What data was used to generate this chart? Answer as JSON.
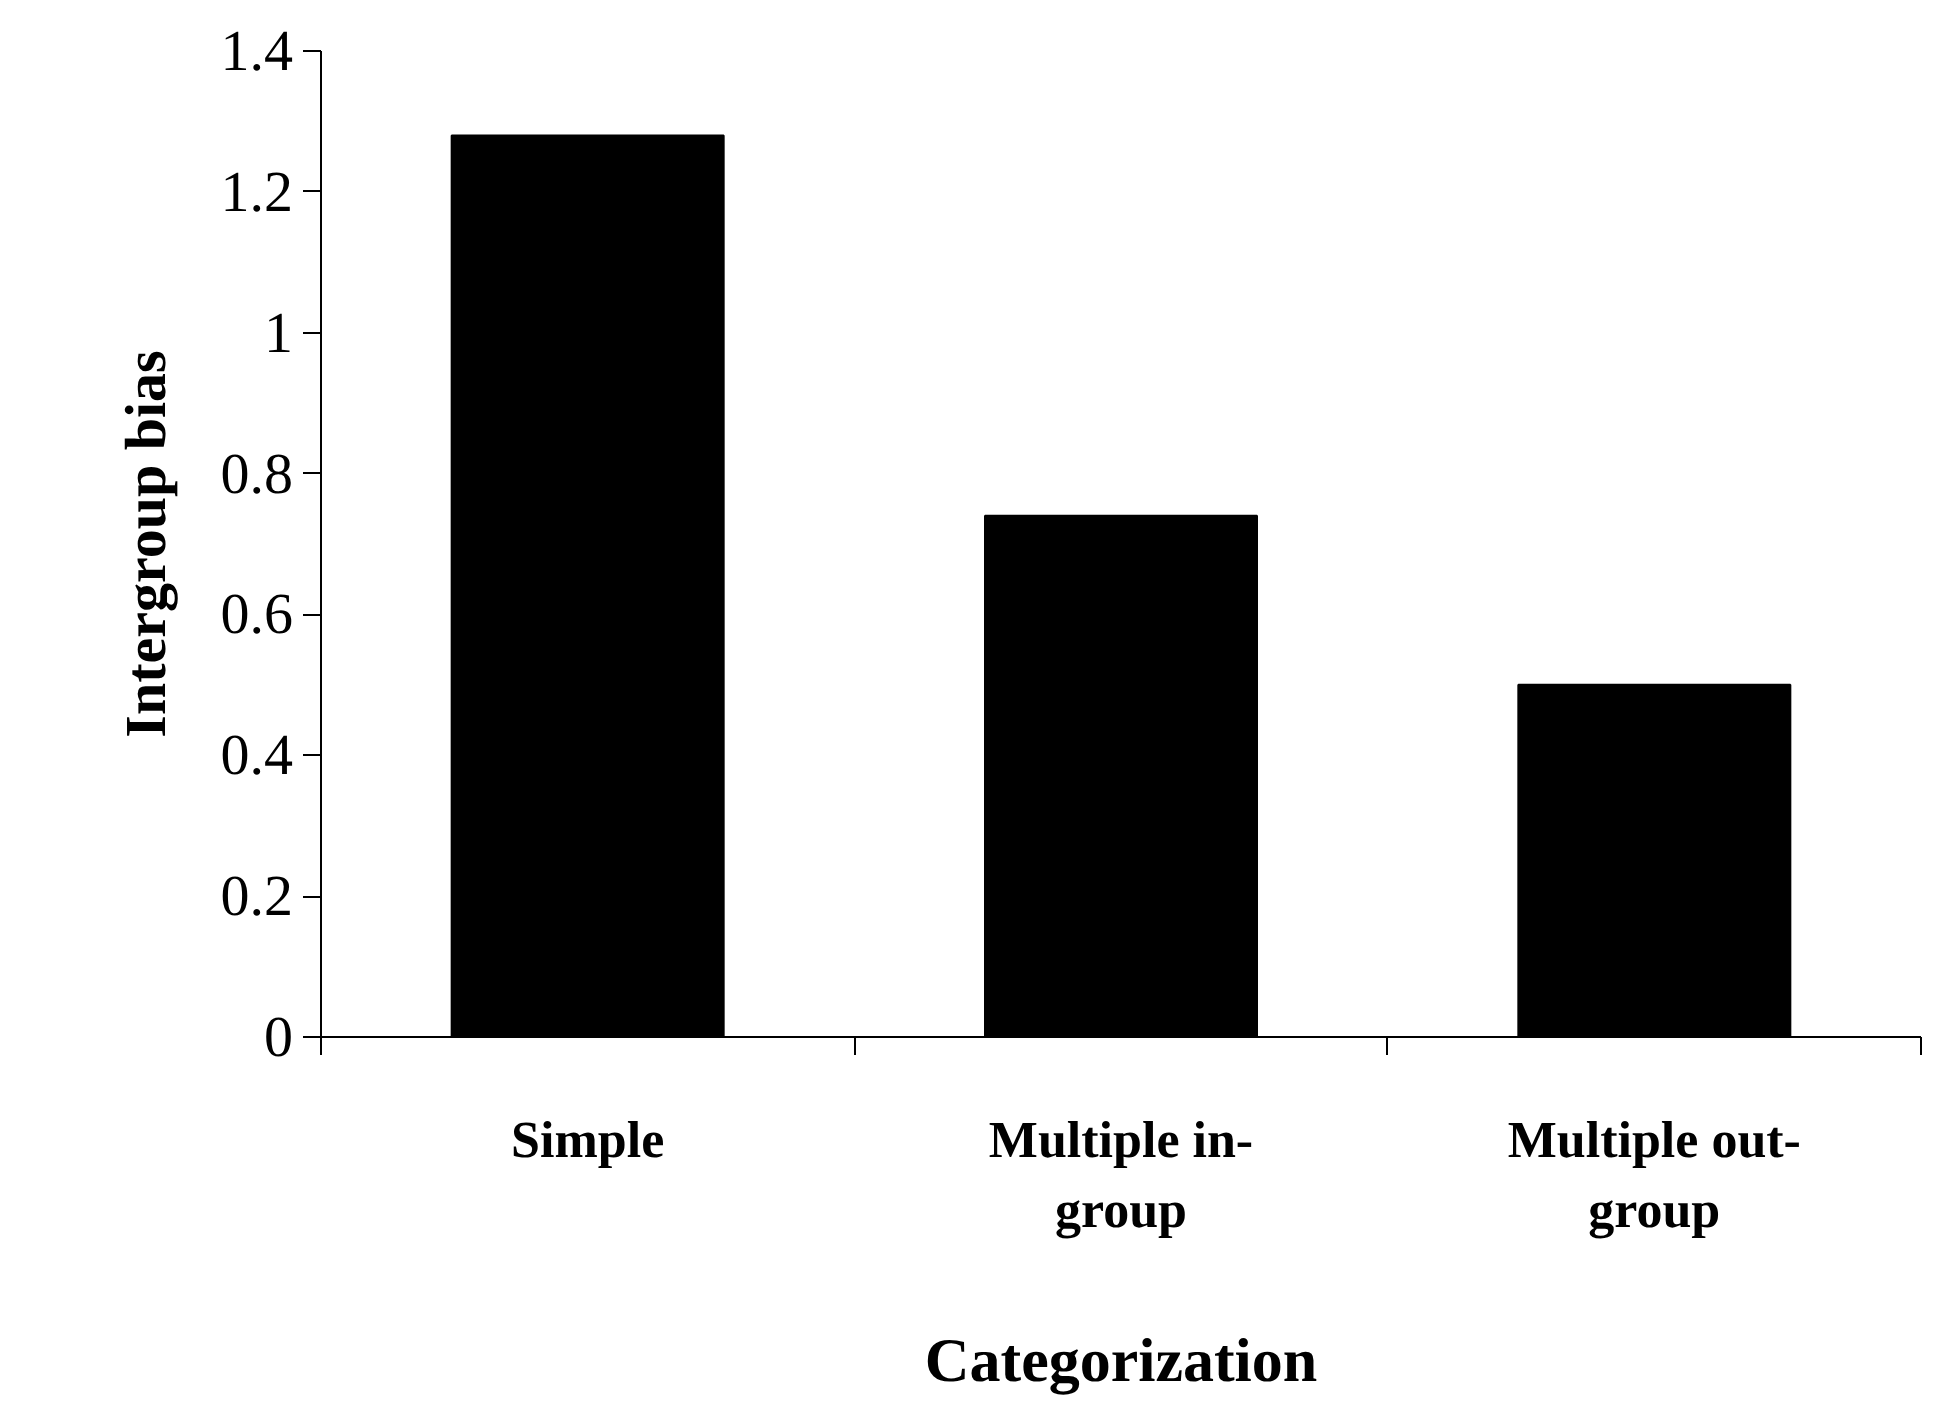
{
  "chart_data": {
    "type": "bar",
    "categories": [
      "Simple",
      "Multiple in-\ngroup",
      "Multiple out-\ngroup"
    ],
    "values": [
      1.28,
      0.74,
      0.5
    ],
    "color": "#000000",
    "xlabel": "Categorization",
    "ylabel": "Intergroup bias",
    "ylim": [
      0,
      1.4
    ],
    "yticks": [
      0,
      0.2,
      0.4,
      0.6,
      0.8,
      1,
      1.2,
      1.4
    ],
    "grid": false
  }
}
